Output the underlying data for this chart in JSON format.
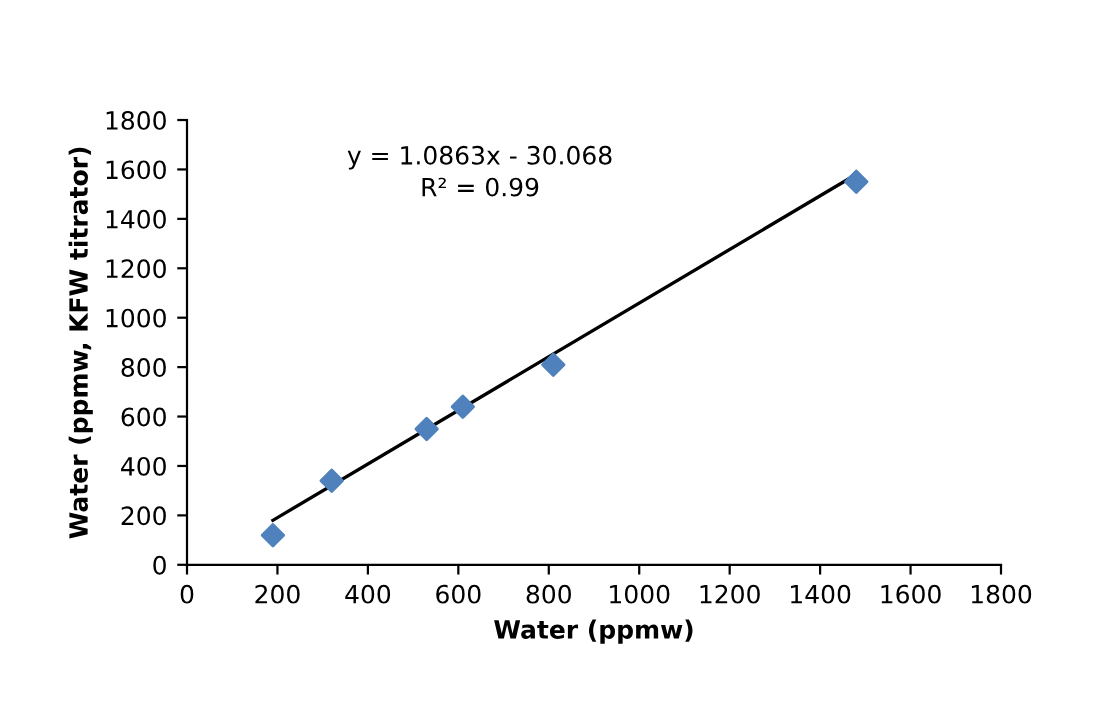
{
  "chart_data": {
    "type": "scatter",
    "xlabel": "Water (ppmw)",
    "ylabel": "Water (ppmw, KFW titrator)",
    "annotations": [
      "y = 1.0863x - 30.068\nR² = 0.99"
    ],
    "xlim": [
      0,
      1800
    ],
    "xticks": [
      0,
      200,
      400,
      600,
      800,
      1000,
      1200,
      1400,
      1600,
      1800
    ],
    "ylim": [
      0,
      1800
    ],
    "yticks": [
      0,
      200,
      400,
      600,
      800,
      1000,
      1200,
      1400,
      1600,
      1800
    ],
    "grid": false,
    "legend": false,
    "series": [
      {
        "marker": "diamond",
        "color": "#4f81bd",
        "x": [
          190,
          320,
          530,
          610,
          810,
          1480
        ],
        "values": [
          120,
          340,
          550,
          640,
          810,
          1550
        ]
      },
      {
        "type": "line",
        "marker": "none",
        "color": "#000000",
        "line_style": "solid",
        "x": [
          190,
          1480
        ],
        "values": [
          180,
          1580
        ]
      }
    ]
  }
}
